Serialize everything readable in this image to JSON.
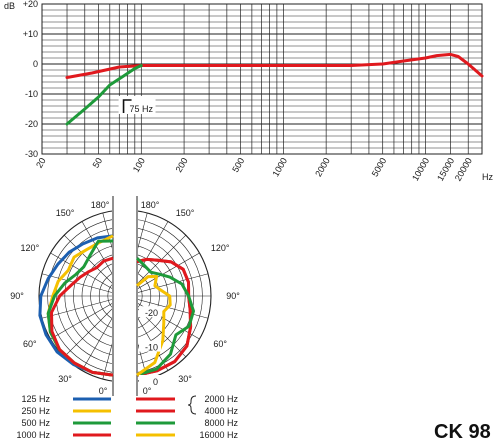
{
  "model": "CK 98",
  "chart_data": [
    {
      "type": "line",
      "title": "",
      "ylabel": "dB",
      "xlabel": "Hz",
      "xscale": "log",
      "xlim": [
        20,
        25000
      ],
      "ylim": [
        -30,
        20
      ],
      "grid": true,
      "y_tick_labels": [
        "+20",
        "+10",
        "0",
        "-10",
        "-20",
        "-30"
      ],
      "x_tick_labels": [
        "20",
        "50",
        "100",
        "200",
        "500",
        "1000",
        "2000",
        "5000",
        "10000",
        "15000",
        "20000"
      ],
      "series": [
        {
          "color": "#e0191e",
          "x": [
            30,
            45,
            70,
            100,
            200,
            500,
            1000,
            2000,
            3000,
            5000,
            7000,
            10000,
            12000,
            15000,
            17000,
            20000,
            25000
          ],
          "y": [
            -4.5,
            -3,
            -1,
            -0.5,
            -0.5,
            -0.5,
            -0.5,
            -0.5,
            -0.5,
            0,
            1,
            2,
            2.8,
            3.2,
            2.5,
            0,
            -4
          ]
        },
        {
          "color": "#1e9a3a",
          "x": [
            30,
            40,
            50,
            60,
            75,
            90,
            100
          ],
          "y": [
            -20,
            -15,
            -11,
            -7,
            -4,
            -1.5,
            -0.5
          ]
        }
      ],
      "annotations": [
        "75 Hz"
      ]
    },
    {
      "type": "polar",
      "radial_tick_labels": [
        "0",
        "-10",
        "-20"
      ],
      "angle_labels": [
        "0°",
        "30°",
        "60°",
        "90°",
        "120°",
        "150°",
        "180°"
      ],
      "left_half": [
        {
          "label": "125 Hz",
          "color": "#1c5fb0",
          "r": [
            23,
            23,
            23,
            23,
            22.5,
            22,
            21,
            19.5,
            18.5,
            18,
            17.5,
            17.5,
            17.5
          ]
        },
        {
          "label": "250 Hz",
          "color": "#f5c000",
          "r": [
            23,
            23,
            22.5,
            22,
            21,
            19.5,
            17.5,
            16.5,
            15,
            16,
            15.5,
            16,
            17.5
          ]
        },
        {
          "label": "500 Hz",
          "color": "#1e9a3a",
          "r": [
            23,
            23,
            22.5,
            22,
            21,
            19.5,
            17,
            14.5,
            12.5,
            12,
            13.5,
            16.5,
            16
          ]
        },
        {
          "label": "1000 Hz",
          "color": "#e0191e",
          "r": [
            23,
            23,
            22.5,
            22,
            20.5,
            18.5,
            15.5,
            12.5,
            11,
            10,
            9.5,
            10.5,
            11
          ]
        }
      ],
      "right_half": [
        {
          "label": "2000 Hz",
          "color": "#e0191e",
          "r": [
            23,
            22.5,
            22,
            20.5,
            18,
            16,
            15,
            15.5,
            15.5,
            14,
            12,
            11,
            10
          ]
        },
        {
          "label": "4000 Hz",
          "color": "#e0191e",
          "r": [
            23,
            22.5,
            22,
            20.5,
            18,
            16,
            15,
            15.5,
            15.5,
            14,
            12,
            11,
            10
          ]
        },
        {
          "label": "8000 Hz",
          "color": "#1e9a3a",
          "r": [
            23,
            22,
            19.5,
            16,
            17.5,
            17,
            15,
            13.5,
            11,
            9,
            8,
            9,
            11
          ]
        },
        {
          "label": "16000 Hz",
          "color": "#f5c000",
          "r": [
            23,
            20,
            15,
            11,
            9,
            10,
            9.5,
            7,
            6,
            8,
            6.5,
            4,
            3
          ]
        }
      ],
      "legend_left": [
        {
          "label": "125 Hz",
          "color": "#1c5fb0"
        },
        {
          "label": "250 Hz",
          "color": "#f5c000"
        },
        {
          "label": "500 Hz",
          "color": "#1e9a3a"
        },
        {
          "label": "1000 Hz",
          "color": "#e0191e"
        }
      ],
      "legend_right": [
        {
          "label": "2000 Hz",
          "color": "#e0191e"
        },
        {
          "label": "4000 Hz",
          "color": "#e0191e"
        },
        {
          "label": "8000 Hz",
          "color": "#1e9a3a"
        },
        {
          "label": "16000 Hz",
          "color": "#f5c000"
        }
      ]
    }
  ]
}
